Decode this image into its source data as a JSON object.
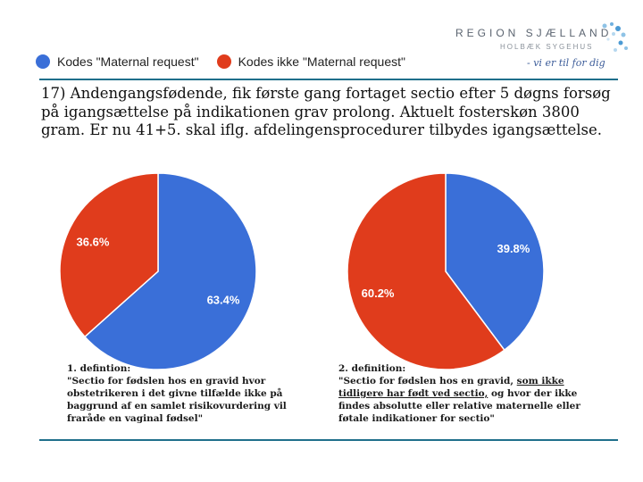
{
  "header": {
    "logo": {
      "name": "REGION SJÆLLAND",
      "subtitle": "HOLBÆK SYGEHUS",
      "slogan": "- vi er til for dig"
    }
  },
  "legend": {
    "items": [
      {
        "label": "Kodes \"Maternal request\"",
        "color": "#3a6fd8"
      },
      {
        "label": "Kodes ikke \"Maternal request\"",
        "color": "#e03c1c"
      }
    ]
  },
  "question": "17) Andengangsfødende, fik første gang fortaget sectio efter 5 døgns forsøg på igangsættelse på indikationen grav prolong. Aktuelt fosterskøn 3800 gram. Er nu 41+5. skal iflg. afdelingensprocedurer tilbydes igangsættelse.",
  "chart_data": [
    {
      "type": "pie",
      "title": "1. defintion",
      "slices": [
        {
          "name": "Kodes \"Maternal request\"",
          "value": 63.4,
          "label": "63.4%",
          "color": "#3a6fd8"
        },
        {
          "name": "Kodes ikke \"Maternal request\"",
          "value": 36.6,
          "label": "36.6%",
          "color": "#e03c1c"
        }
      ]
    },
    {
      "type": "pie",
      "title": "2. definition",
      "slices": [
        {
          "name": "Kodes \"Maternal request\"",
          "value": 39.8,
          "label": "39.8%",
          "color": "#3a6fd8"
        },
        {
          "name": "Kodes ikke \"Maternal request\"",
          "value": 60.2,
          "label": "60.2%",
          "color": "#e03c1c"
        }
      ]
    }
  ],
  "definitions": {
    "left": {
      "heading": "1. defintion:",
      "text": "\"Sectio for fødslen hos en gravid hvor obstetrikeren i det givne tilfælde ikke på baggrund af en samlet risikovurdering vil fraråde en vaginal fødsel\""
    },
    "right": {
      "heading": "2. definition:",
      "text_before": "\"Sectio for fødslen hos en gravid, ",
      "text_underlined": "som ikke tidligere har født ved sectio,",
      "text_after": " og hvor der ikke findes absolutte eller relative maternelle eller føtale indikationer for sectio\""
    }
  }
}
